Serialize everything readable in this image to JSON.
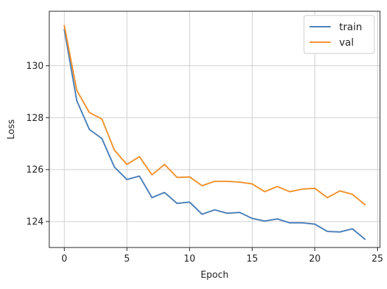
{
  "chart_data": {
    "type": "line",
    "title": "",
    "xlabel": "Epoch",
    "ylabel": "Loss",
    "xlim": [
      -1.2,
      25.2
    ],
    "ylim": [
      123.0,
      132.1
    ],
    "xticks": [
      0,
      5,
      10,
      15,
      20,
      25
    ],
    "yticks": [
      124,
      126,
      128,
      130
    ],
    "grid": true,
    "legend_position": "top-right",
    "x": [
      0,
      1,
      2,
      3,
      4,
      5,
      6,
      7,
      8,
      9,
      10,
      11,
      12,
      13,
      14,
      15,
      16,
      17,
      18,
      19,
      20,
      21,
      22,
      23,
      24
    ],
    "series": [
      {
        "name": "train",
        "color": "#4a7fb8",
        "values": [
          131.4,
          128.65,
          127.55,
          127.2,
          126.1,
          125.62,
          125.75,
          124.92,
          125.12,
          124.7,
          124.75,
          124.28,
          124.45,
          124.32,
          124.35,
          124.12,
          124.02,
          124.1,
          123.95,
          123.95,
          123.9,
          123.62,
          123.6,
          123.72,
          123.32
        ]
      },
      {
        "name": "val",
        "color": "#f0922e",
        "values": [
          131.55,
          129.05,
          128.2,
          127.95,
          126.75,
          126.2,
          126.5,
          125.8,
          126.2,
          125.7,
          125.72,
          125.38,
          125.55,
          125.55,
          125.52,
          125.45,
          125.15,
          125.35,
          125.15,
          125.25,
          125.28,
          124.92,
          125.18,
          125.05,
          124.65
        ]
      }
    ]
  }
}
